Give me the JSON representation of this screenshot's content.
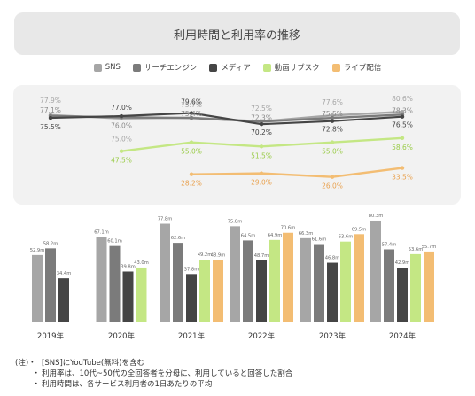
{
  "title": "利用時間と利用率の推移",
  "legend": [
    {
      "label": "SNS",
      "color": "#a6a6a6"
    },
    {
      "label": "サーチエンジン",
      "color": "#7b7b7b"
    },
    {
      "label": "メディア",
      "color": "#454545"
    },
    {
      "label": "動画サブスク",
      "color": "#c4e784"
    },
    {
      "label": "ライブ配信",
      "color": "#f3bd73"
    }
  ],
  "chart_data": [
    {
      "type": "line",
      "title": "",
      "categories": [
        "2019年",
        "2020年",
        "2021年",
        "2022年",
        "2023年",
        "2024年"
      ],
      "series": [
        {
          "name": "SNS",
          "color": "#a6a6a6",
          "values": [
            77.9,
            75.0,
            75.7,
            72.5,
            77.6,
            80.6
          ],
          "labels": [
            "77.9%",
            "75.0%",
            "75.7%",
            "72.5%",
            "77.6%",
            "80.6%"
          ]
        },
        {
          "name": "サーチエンジン",
          "color": "#7b7b7b",
          "values": [
            77.1,
            76.0,
            75.4,
            72.3,
            75.5,
            78.3
          ],
          "labels": [
            "77.1%",
            "76.0%",
            "75.4%",
            "72.3%",
            "75.5%",
            "78.3%"
          ]
        },
        {
          "name": "メディア",
          "color": "#454545",
          "values": [
            75.5,
            77.0,
            79.6,
            70.2,
            72.8,
            76.5
          ],
          "labels": [
            "75.5%",
            "77.0%",
            "79.6%",
            "70.2%",
            "72.8%",
            "76.5%"
          ]
        },
        {
          "name": "動画サブスク",
          "color": "#c4e784",
          "values": [
            null,
            47.5,
            55.0,
            51.5,
            55.0,
            58.6
          ],
          "labels": [
            "",
            "47.5%",
            "55.0%",
            "51.5%",
            "55.0%",
            "58.6%"
          ]
        },
        {
          "name": "ライブ配信",
          "color": "#f3bd73",
          "values": [
            null,
            null,
            28.2,
            29.0,
            26.0,
            33.5
          ],
          "labels": [
            "",
            "",
            "28.2%",
            "29.0%",
            "26.0%",
            "33.5%"
          ]
        }
      ]
    },
    {
      "type": "bar",
      "title": "",
      "categories": [
        "2019年",
        "2020年",
        "2021年",
        "2022年",
        "2023年",
        "2024年"
      ],
      "series": [
        {
          "name": "SNS",
          "color": "#a6a6a6",
          "values": [
            52.9,
            67.1,
            77.8,
            75.8,
            66.3,
            80.3
          ]
        },
        {
          "name": "サーチエンジン",
          "color": "#7b7b7b",
          "values": [
            58.2,
            60.1,
            62.6,
            64.5,
            61.6,
            57.4
          ]
        },
        {
          "name": "メディア",
          "color": "#454545",
          "values": [
            34.4,
            39.8,
            37.8,
            48.7,
            46.8,
            42.9
          ]
        },
        {
          "name": "動画サブスク",
          "color": "#c4e784",
          "values": [
            null,
            43.0,
            49.2,
            64.9,
            63.6,
            53.6
          ]
        },
        {
          "name": "ライブ配信",
          "color": "#f3bd73",
          "values": [
            null,
            null,
            48.9,
            70.6,
            69.5,
            55.7
          ]
        }
      ],
      "bar_labels": [
        [
          "52.9m",
          "58.2m",
          "34.4m",
          "",
          ""
        ],
        [
          "67.1m",
          "60.1m",
          "39.8m",
          "43.0m",
          ""
        ],
        [
          "77.8m",
          "62.6m",
          "37.8m",
          "49.2m",
          "48.9m"
        ],
        [
          "75.8m",
          "64.5m",
          "48.7m",
          "64.9m",
          "70.6m"
        ],
        [
          "66.3m",
          "61.6m",
          "46.8m",
          "63.6m",
          "69.5m"
        ],
        [
          "80.3m",
          "57.4m",
          "42.9m",
          "53.6m",
          "55.7m"
        ]
      ]
    }
  ],
  "notes": [
    {
      "prefix": "(注)・",
      "text": "[SNS]にYouTube(無料)を含む"
    },
    {
      "prefix": "・",
      "text": "利用率は、10代~50代の全回答者を分母に、利用していると回答した割合"
    },
    {
      "prefix": "・",
      "text": "利用時間は、各サービス利用者の1日あたりの平均"
    }
  ]
}
